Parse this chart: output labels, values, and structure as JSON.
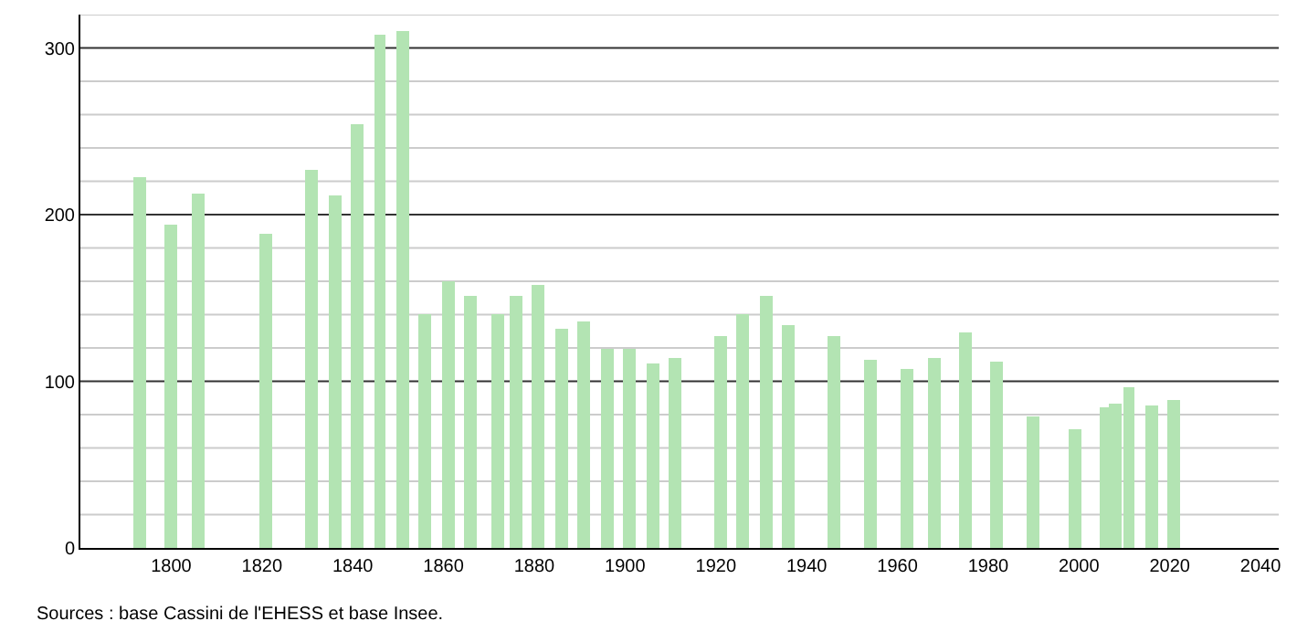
{
  "chart_data": {
    "type": "bar",
    "x": [
      1793,
      1800,
      1806,
      1821,
      1831,
      1836,
      1841,
      1846,
      1851,
      1856,
      1861,
      1866,
      1872,
      1876,
      1881,
      1886,
      1891,
      1896,
      1901,
      1906,
      1911,
      1921,
      1926,
      1931,
      1936,
      1946,
      1954,
      1962,
      1968,
      1975,
      1982,
      1990,
      1999,
      2006,
      2008,
      2011,
      2016,
      2021
    ],
    "values": [
      223,
      194,
      213,
      189,
      227,
      211,
      254,
      308,
      310,
      140,
      160,
      151,
      140,
      151,
      158,
      132,
      136,
      120,
      119,
      111,
      114,
      127,
      140,
      151,
      134,
      127,
      113,
      107,
      114,
      129,
      112,
      79,
      71,
      84,
      87,
      96,
      86,
      89
    ],
    "color": "#b3e4b3",
    "xlim": [
      1780,
      2044
    ],
    "xticks": [
      1800,
      1820,
      1840,
      1860,
      1880,
      1900,
      1920,
      1940,
      1960,
      1980,
      2000,
      2020,
      2040
    ],
    "ylim": [
      0,
      320
    ],
    "yticks": [
      0,
      {
        "value": 20,
        "label": null
      },
      {
        "value": 40,
        "label": null
      },
      {
        "value": 60,
        "label": null
      },
      {
        "value": 80,
        "label": null
      },
      100,
      {
        "value": 120,
        "label": null
      },
      {
        "value": 140,
        "label": null
      },
      {
        "value": 160,
        "label": null
      },
      {
        "value": 180,
        "label": null
      },
      200,
      {
        "value": 220,
        "label": null
      },
      {
        "value": 240,
        "label": null
      },
      {
        "value": 260,
        "label": null
      },
      {
        "value": 280,
        "label": null
      },
      300,
      {
        "value": 320,
        "label": null
      }
    ],
    "grid": true,
    "annotations": [
      "Sources : base Cassini de l'EHESS et base Insee."
    ]
  }
}
